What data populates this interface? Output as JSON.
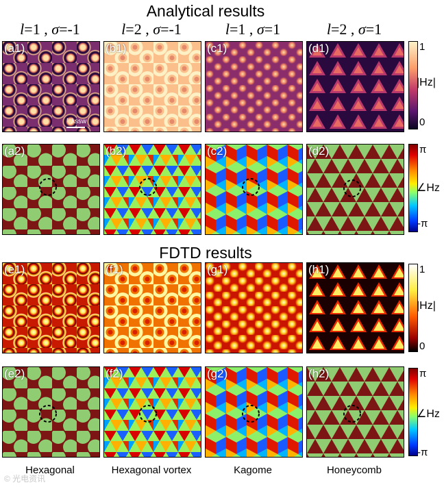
{
  "sections": {
    "analytical_title": "Analytical results",
    "fdtd_title": "FDTD  results"
  },
  "columns": [
    {
      "l_sym": "l",
      "l_val": "=1 , ",
      "s_sym": "σ",
      "s_val": "=-1",
      "name": "Hexagonal"
    },
    {
      "l_sym": "l",
      "l_val": "=2 , ",
      "s_sym": "σ",
      "s_val": "=-1",
      "name": "Hexagonal vortex"
    },
    {
      "l_sym": "l",
      "l_val": "=1 , ",
      "s_sym": "σ",
      "s_val": "=1",
      "name": "Kagome"
    },
    {
      "l_sym": "l",
      "l_val": "=2 , ",
      "s_sym": "σ",
      "s_val": "=1",
      "name": "Honeycomb"
    }
  ],
  "panels": {
    "row1": [
      "(a1)",
      "(b1)",
      "(c1)",
      "(d1)"
    ],
    "row2": [
      "(a2)",
      "(b2)",
      "(c2)",
      "(d2)"
    ],
    "row3": [
      "(e1)",
      "(f1)",
      "(g1)",
      "(h1)"
    ],
    "row4": [
      "(e2)",
      "(f2)",
      "(g2)",
      "(h2)"
    ]
  },
  "scale_label": "λssw",
  "colorbars": {
    "amp_analytical": {
      "max": "1",
      "min": "0",
      "label": "|Hz|"
    },
    "phase_analytical": {
      "max": "π",
      "min": "-π",
      "label": "∠Hz"
    },
    "amp_fdtd": {
      "max": "1",
      "min": "0",
      "label": "|Hz|"
    },
    "phase_fdtd": {
      "max": "π",
      "min": "-π",
      "label": "∠Hz"
    }
  },
  "colors": {
    "magma_dark": "#2a0a3e",
    "magma_mid": "#b8386b",
    "magma_light": "#fde0a8",
    "hot_dark": "#8a0000",
    "hot_mid": "#ff6a00",
    "hot_light": "#fffbd5",
    "phase_red": "#7b1614",
    "phase_green": "#8fcc72"
  },
  "watermark": "© 光电资讯"
}
